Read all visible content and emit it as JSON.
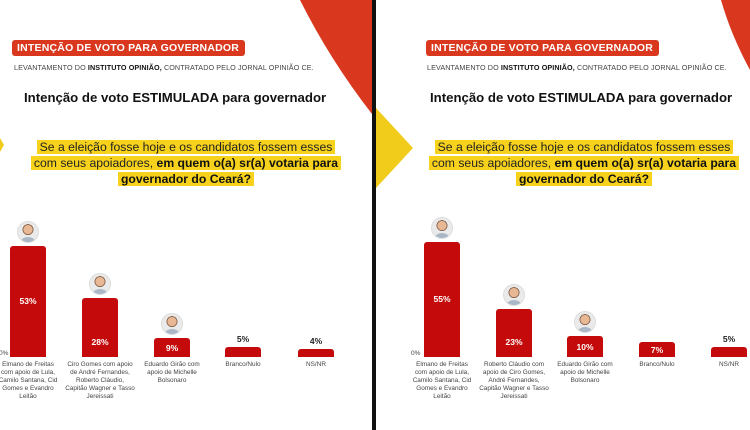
{
  "colors": {
    "accent": "#d9381e",
    "bar": "#c40a0a",
    "highlight": "#f7d21c",
    "divider": "#111111"
  },
  "panels": [
    {
      "badge": "INTENÇÃO DE VOTO PARA GOVERNADOR",
      "subtitle_pre": "LEVANTAMENTO DO ",
      "subtitle_bold": "INSTITUTO OPINIÃO,",
      "subtitle_post": " CONTRATADO PELO JORNAL OPINIÃO CE.",
      "heading": "Intenção de voto ESTIMULADA para governador",
      "question_normal": "Se a eleição fosse hoje e os candidatos fossem esses com seus apoiadores, ",
      "question_bold": "em quem o(a) sr(a) votaria para governador do Ceará?",
      "zero_label": "0%"
    },
    {
      "badge": "INTENÇÃO DE VOTO PARA GOVERNADOR",
      "subtitle_pre": "LEVANTAMENTO DO ",
      "subtitle_bold": "INSTITUTO OPINIÃO,",
      "subtitle_post": " CONTRATADO PELO JORNAL OPINIÃO CE.",
      "heading": "Intenção de voto ESTIMULADA para governador",
      "question_normal": "Se a eleição fosse hoje e os candidatos fossem esses com seus apoiadores, ",
      "question_bold": "em quem o(a) sr(a) votaria para governador do Ceará?",
      "zero_label": "0%"
    }
  ],
  "chart_data": [
    {
      "type": "bar",
      "title": "Intenção de voto ESTIMULADA para governador",
      "xlabel": "",
      "ylabel": "",
      "ylim": [
        0,
        55
      ],
      "categories": [
        "Elmano de Freitas com apoio de Lula, Camilo Santana, Cid Gomes e Evandro Leitão",
        "Ciro Gomes com apoio de André Fernandes, Roberto Cláudio, Capitão Wagner e Tasso Jereissati",
        "Eduardo Girão com apoio de Michelle Bolsonaro",
        "Branco/Nulo",
        "NS/NR"
      ],
      "values": [
        53,
        28,
        9,
        5,
        4
      ],
      "labels": [
        "53%",
        "28%",
        "9%",
        "5%",
        "4%"
      ],
      "has_photo": [
        true,
        true,
        true,
        false,
        false
      ]
    },
    {
      "type": "bar",
      "title": "Intenção de voto ESTIMULADA para governador",
      "xlabel": "",
      "ylabel": "",
      "ylim": [
        0,
        55
      ],
      "categories": [
        "Elmano de Freitas com apoio de Lula, Camilo Santana, Cid Gomes e Evandro Leitão",
        "Roberto Cláudio com apoio de Ciro Gomes, André Fernandes, Capitão Wagner e Tasso Jereissati",
        "Eduardo Girão com apoio de Michelle Bolsonaro",
        "Branco/Nulo",
        "NS/NR"
      ],
      "values": [
        55,
        23,
        10,
        7,
        5
      ],
      "labels": [
        "55%",
        "23%",
        "10%",
        "7%",
        "5%"
      ],
      "has_photo": [
        true,
        true,
        true,
        false,
        false
      ]
    }
  ]
}
